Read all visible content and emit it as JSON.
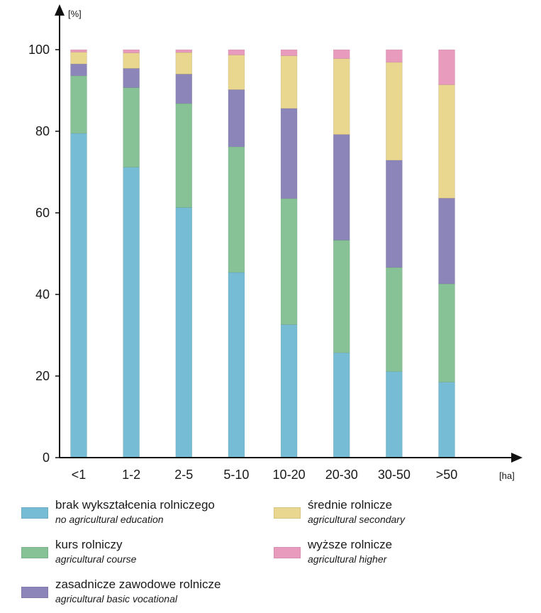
{
  "chart_data": {
    "type": "bar",
    "stacked": true,
    "categories": [
      "<1",
      "1-2",
      "2-5",
      "5-10",
      "10-20",
      "20-30",
      "30-50",
      ">50"
    ],
    "series": [
      {
        "name": "brak wykształcenia rolniczego",
        "subname": "no agricultural education",
        "color": "#76bcd4",
        "values": [
          79.5,
          71.2,
          61.3,
          45.4,
          32.6,
          25.7,
          21.1,
          18.5
        ]
      },
      {
        "name": "kurs rolniczy",
        "subname": "agricultural course",
        "color": "#86c296",
        "values": [
          14.1,
          19.5,
          25.5,
          30.8,
          30.9,
          27.6,
          25.5,
          24.1
        ]
      },
      {
        "name": "zasadnicze zawodowe rolnicze",
        "subname": "agricultural basic vocational",
        "color": "#8c85b9",
        "values": [
          2.9,
          4.7,
          7.2,
          14.0,
          22.1,
          25.9,
          26.3,
          21.0
        ]
      },
      {
        "name": "średnie rolnicze",
        "subname": "agricultural secondary",
        "color": "#e9d78f",
        "values": [
          2.9,
          3.8,
          5.3,
          8.5,
          12.9,
          18.6,
          24.0,
          27.8
        ]
      },
      {
        "name": "wyższe rolnicze",
        "subname": "agricultural higher",
        "color": "#e99bbd",
        "values": [
          0.6,
          0.8,
          0.7,
          1.3,
          1.5,
          2.2,
          3.1,
          8.6
        ]
      }
    ],
    "ylim": [
      0,
      100
    ],
    "yticks": [
      0,
      20,
      40,
      60,
      80,
      100
    ],
    "y_unit": "[%]",
    "x_unit": "[ha]",
    "grid": false,
    "legend_position": "bottom"
  }
}
